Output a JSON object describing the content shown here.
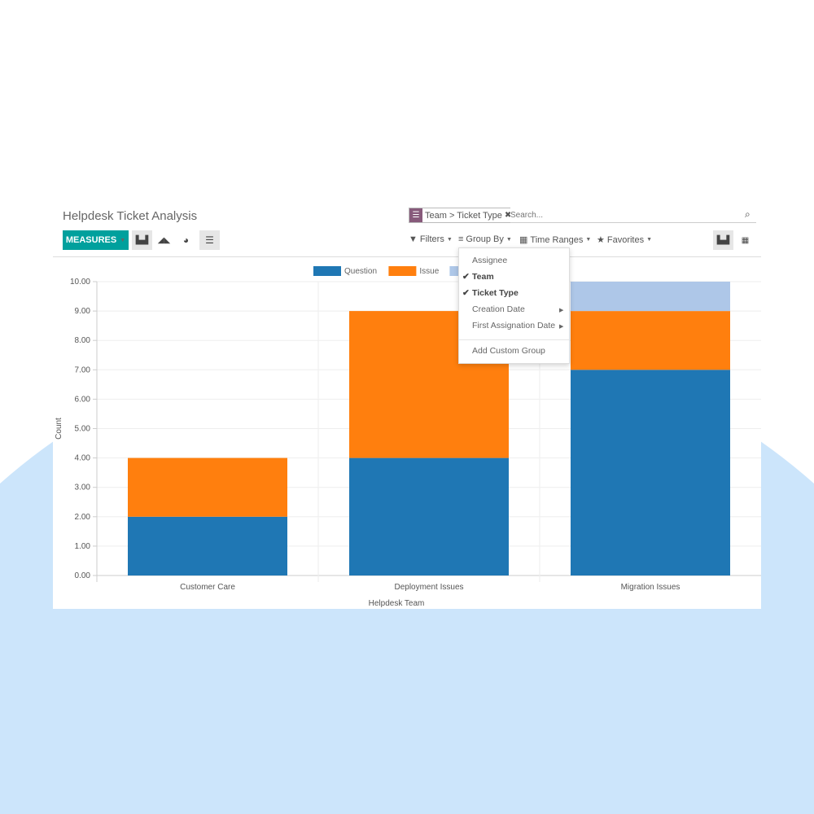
{
  "header": {
    "title": "Helpdesk Ticket Analysis"
  },
  "toolbar": {
    "measures_label": "MEASURES",
    "chart_icons": [
      "bar-chart-icon",
      "line-chart-icon",
      "pie-chart-icon",
      "stack-icon"
    ]
  },
  "search": {
    "facet_label": "Team > Ticket Type",
    "placeholder": "Search..."
  },
  "menus": {
    "filters": "Filters",
    "group_by": "Group By",
    "time_ranges": "Time Ranges",
    "favorites": "Favorites"
  },
  "group_by_dropdown": {
    "items": [
      {
        "label": "Assignee",
        "checked": false
      },
      {
        "label": "Team",
        "checked": true
      },
      {
        "label": "Ticket Type",
        "checked": true
      },
      {
        "label": "Creation Date",
        "submenu": true
      },
      {
        "label": "First Assignation Date",
        "submenu": true
      }
    ],
    "add_custom": "Add Custom Group"
  },
  "colors": {
    "accent": "#00a09d",
    "facet": "#875a7b",
    "background_shape": "#cce5fb"
  },
  "chart_data": {
    "type": "bar",
    "stacked": true,
    "categories": [
      "Customer Care",
      "Deployment Issues",
      "Migration Issues"
    ],
    "series": [
      {
        "name": "Question",
        "values": [
          2,
          4,
          7
        ],
        "color": "#1f77b4"
      },
      {
        "name": "Issue",
        "values": [
          2,
          5,
          2
        ],
        "color": "#ff7f0e"
      },
      {
        "values": [
          0,
          0,
          1
        ],
        "color": "#aec7e8"
      }
    ],
    "xlabel": "Helpdesk Team",
    "ylabel": "Count",
    "ylim": [
      0,
      10
    ],
    "yticks": [
      "0.00",
      "1.00",
      "2.00",
      "3.00",
      "4.00",
      "5.00",
      "6.00",
      "7.00",
      "8.00",
      "9.00",
      "10.00"
    ],
    "grid": true,
    "legend": "top"
  }
}
